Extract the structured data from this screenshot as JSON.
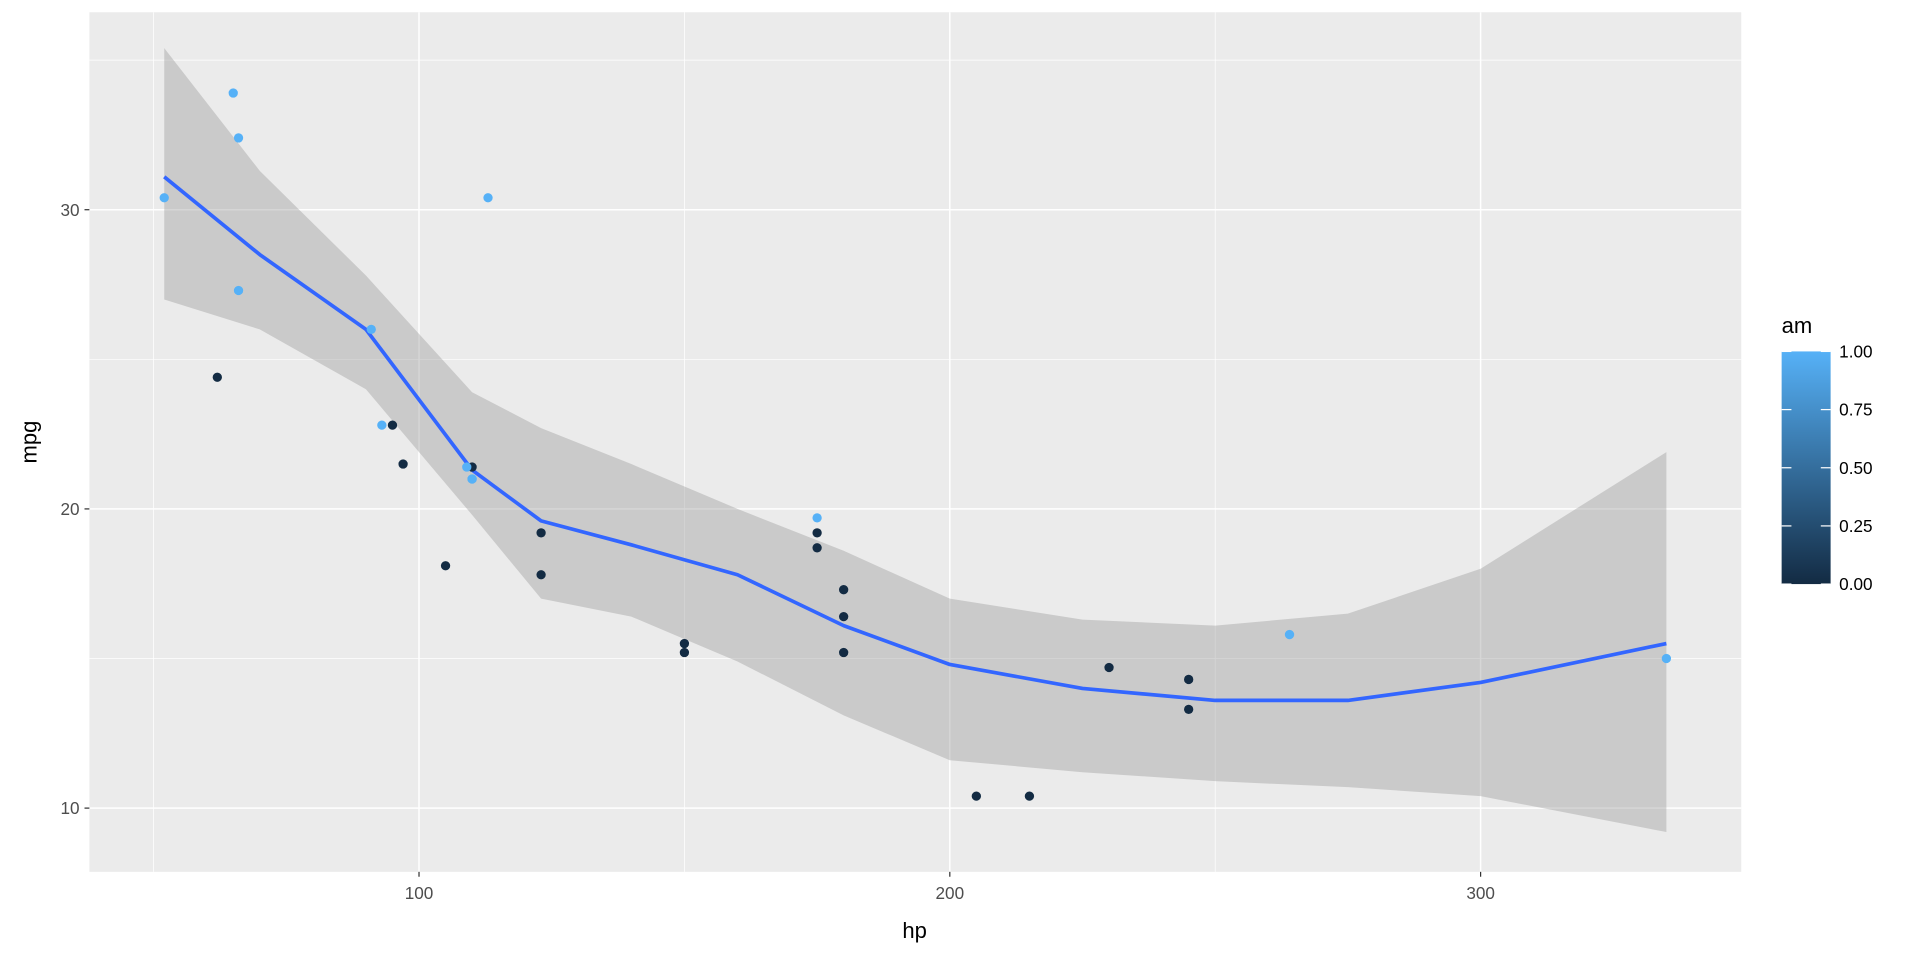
{
  "chart_data": {
    "type": "scatter",
    "title": "",
    "xlabel": "hp",
    "ylabel": "mpg",
    "xlim": [
      37.9,
      349.1
    ],
    "ylim": [
      7.87,
      36.6
    ],
    "xticks": [
      100,
      200,
      300
    ],
    "yticks": [
      10,
      20,
      30
    ],
    "x_tick_labels": [
      "100",
      "200",
      "300"
    ],
    "y_tick_labels": [
      "10",
      "20",
      "30"
    ],
    "grid": true,
    "background": "#EBEBEB",
    "points": [
      {
        "hp": 110,
        "mpg": 21.0,
        "am": 1
      },
      {
        "hp": 110,
        "mpg": 21.0,
        "am": 1
      },
      {
        "hp": 93,
        "mpg": 22.8,
        "am": 1
      },
      {
        "hp": 110,
        "mpg": 21.4,
        "am": 0
      },
      {
        "hp": 175,
        "mpg": 18.7,
        "am": 0
      },
      {
        "hp": 105,
        "mpg": 18.1,
        "am": 0
      },
      {
        "hp": 245,
        "mpg": 14.3,
        "am": 0
      },
      {
        "hp": 62,
        "mpg": 24.4,
        "am": 0
      },
      {
        "hp": 95,
        "mpg": 22.8,
        "am": 0
      },
      {
        "hp": 123,
        "mpg": 19.2,
        "am": 0
      },
      {
        "hp": 123,
        "mpg": 17.8,
        "am": 0
      },
      {
        "hp": 180,
        "mpg": 16.4,
        "am": 0
      },
      {
        "hp": 180,
        "mpg": 17.3,
        "am": 0
      },
      {
        "hp": 180,
        "mpg": 15.2,
        "am": 0
      },
      {
        "hp": 205,
        "mpg": 10.4,
        "am": 0
      },
      {
        "hp": 215,
        "mpg": 10.4,
        "am": 0
      },
      {
        "hp": 230,
        "mpg": 14.7,
        "am": 0
      },
      {
        "hp": 66,
        "mpg": 32.4,
        "am": 1
      },
      {
        "hp": 52,
        "mpg": 30.4,
        "am": 1
      },
      {
        "hp": 65,
        "mpg": 33.9,
        "am": 1
      },
      {
        "hp": 97,
        "mpg": 21.5,
        "am": 0
      },
      {
        "hp": 150,
        "mpg": 15.5,
        "am": 0
      },
      {
        "hp": 150,
        "mpg": 15.2,
        "am": 0
      },
      {
        "hp": 245,
        "mpg": 13.3,
        "am": 0
      },
      {
        "hp": 175,
        "mpg": 19.2,
        "am": 0
      },
      {
        "hp": 66,
        "mpg": 27.3,
        "am": 1
      },
      {
        "hp": 91,
        "mpg": 26.0,
        "am": 1
      },
      {
        "hp": 113,
        "mpg": 30.4,
        "am": 1
      },
      {
        "hp": 264,
        "mpg": 15.8,
        "am": 1
      },
      {
        "hp": 175,
        "mpg": 19.7,
        "am": 1
      },
      {
        "hp": 335,
        "mpg": 15.0,
        "am": 1
      },
      {
        "hp": 109,
        "mpg": 21.4,
        "am": 1
      }
    ],
    "smooth": {
      "method": "loess",
      "color": "#3366FF",
      "ribbon_color": "#999999",
      "x": [
        52,
        70,
        90,
        110,
        123,
        140,
        160,
        180,
        200,
        225,
        250,
        275,
        300,
        335
      ],
      "fit": [
        31.1,
        28.5,
        26.0,
        21.3,
        19.6,
        18.8,
        17.8,
        16.1,
        14.8,
        14.0,
        13.6,
        13.6,
        14.2,
        15.5
      ],
      "lower": [
        27.0,
        26.0,
        24.0,
        19.8,
        17.0,
        16.4,
        14.9,
        13.1,
        11.6,
        11.2,
        10.9,
        10.7,
        10.4,
        9.2
      ],
      "upper": [
        35.4,
        31.3,
        27.8,
        23.9,
        22.7,
        21.5,
        20.0,
        18.6,
        17.0,
        16.3,
        16.1,
        16.5,
        18.0,
        21.9
      ]
    },
    "legend": {
      "title": "am",
      "placement": "right",
      "low_color": "#132B43",
      "high_color": "#56B1F7",
      "range": [
        0,
        1
      ],
      "breaks": [
        0,
        0.25,
        0.5,
        0.75,
        1
      ],
      "labels": [
        "0.00",
        "0.25",
        "0.50",
        "0.75",
        "1.00"
      ]
    }
  }
}
